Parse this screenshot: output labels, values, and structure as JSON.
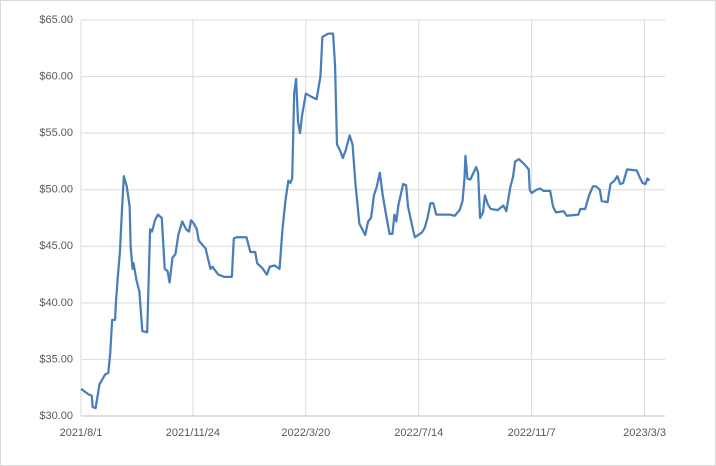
{
  "chart_data": {
    "type": "line",
    "color": "#4a7ebb",
    "grid": true,
    "xlim": [
      "2021/8/1",
      "2023/3/24"
    ],
    "xticks": [
      "2021/8/1",
      "2021/11/24",
      "2022/3/20",
      "2022/7/14",
      "2022/11/7",
      "2023/3/3"
    ],
    "ylim": [
      30,
      65
    ],
    "yticks": [
      {
        "value": 30,
        "label": "$30.00"
      },
      {
        "value": 35,
        "label": "$35.00"
      },
      {
        "value": 40,
        "label": "$40.00"
      },
      {
        "value": 45,
        "label": "$45.00"
      },
      {
        "value": 50,
        "label": "$50.00"
      },
      {
        "value": 55,
        "label": "$55.00"
      },
      {
        "value": 60,
        "label": "$60.00"
      },
      {
        "value": 65,
        "label": "$65.00"
      }
    ],
    "x": [
      "2021/8/1",
      "2021/8/9",
      "2021/8/12",
      "2021/8/13",
      "2021/8/16",
      "2021/8/20",
      "2021/8/26",
      "2021/8/29",
      "2021/8/31",
      "2021/9/2",
      "2021/9/5",
      "2021/9/6",
      "2021/9/8",
      "2021/9/10",
      "2021/9/12",
      "2021/9/14",
      "2021/9/17",
      "2021/9/20",
      "2021/9/21",
      "2021/9/23",
      "2021/9/24",
      "2021/9/27",
      "2021/9/30",
      "2021/10/3",
      "2021/10/8",
      "2021/10/11",
      "2021/10/13",
      "2021/10/16",
      "2021/10/19",
      "2021/10/23",
      "2021/10/26",
      "2021/10/29",
      "2021/10/31",
      "2021/11/3",
      "2021/11/6",
      "2021/11/9",
      "2021/11/13",
      "2021/11/17",
      "2021/11/20",
      "2021/11/22",
      "2021/11/25",
      "2021/11/28",
      "2021/11/30",
      "2021/12/7",
      "2021/12/12",
      "2021/12/14",
      "2021/12/20",
      "2021/12/26",
      "2022/1/3",
      "2022/1/5",
      "2022/1/8",
      "2022/1/18",
      "2022/1/22",
      "2022/1/27",
      "2022/1/29",
      "2022/2/3",
      "2022/2/8",
      "2022/2/11",
      "2022/2/16",
      "2022/2/21",
      "2022/2/24",
      "2022/2/27",
      "2022/3/2",
      "2022/3/4",
      "2022/3/6",
      "2022/3/8",
      "2022/3/10",
      "2022/3/12",
      "2022/3/14",
      "2022/3/16",
      "2022/3/20",
      "2022/3/26",
      "2022/3/31",
      "2022/4/4",
      "2022/4/6",
      "2022/4/12",
      "2022/4/17",
      "2022/4/19",
      "2022/4/21",
      "2022/4/24",
      "2022/4/27",
      "2022/4/30",
      "2022/5/4",
      "2022/5/7",
      "2022/5/10",
      "2022/5/14",
      "2022/5/20",
      "2022/5/23",
      "2022/5/26",
      "2022/5/29",
      "2022/6/1",
      "2022/6/4",
      "2022/6/7",
      "2022/6/11",
      "2022/6/14",
      "2022/6/17",
      "2022/6/19",
      "2022/6/21",
      "2022/6/23",
      "2022/6/28",
      "2022/7/1",
      "2022/7/3",
      "2022/7/8",
      "2022/7/10",
      "2022/7/17",
      "2022/7/20",
      "2022/7/23",
      "2022/7/26",
      "2022/7/29",
      "2022/8/1",
      "2022/8/15",
      "2022/8/20",
      "2022/8/25",
      "2022/8/28",
      "2022/8/30",
      "2022/8/31",
      "2022/9/2",
      "2022/9/5",
      "2022/9/11",
      "2022/9/13",
      "2022/9/15",
      "2022/9/18",
      "2022/9/20",
      "2022/9/23",
      "2022/9/26",
      "2022/10/3",
      "2022/10/9",
      "2022/10/12",
      "2022/10/16",
      "2022/10/19",
      "2022/10/21",
      "2022/10/25",
      "2022/10/31",
      "2022/11/4",
      "2022/11/5",
      "2022/11/7",
      "2022/11/12",
      "2022/11/16",
      "2022/11/19",
      "2022/11/26",
      "2022/11/29",
      "2022/12/2",
      "2022/12/10",
      "2022/12/13",
      "2022/12/25",
      "2022/12/27",
      "2023/1/1",
      "2023/1/5",
      "2023/1/9",
      "2023/1/12",
      "2023/1/16",
      "2023/1/18",
      "2023/1/24",
      "2023/1/27",
      "2023/1/31",
      "2023/2/3",
      "2023/2/6",
      "2023/2/9",
      "2023/2/13",
      "2023/2/23",
      "2023/2/26",
      "2023/3/1",
      "2023/3/4",
      "2023/3/6",
      "2023/3/8"
    ],
    "values": [
      32.4,
      31.9,
      31.8,
      30.8,
      30.7,
      32.8,
      33.7,
      33.8,
      35.5,
      38.5,
      38.5,
      40.2,
      42.5,
      44.5,
      48,
      51.2,
      50.3,
      48.5,
      45,
      43,
      43.5,
      42,
      41,
      37.5,
      37.4,
      46.5,
      46.3,
      47.3,
      47.8,
      47.5,
      43,
      42.8,
      41.8,
      44,
      44.3,
      46,
      47.2,
      46.5,
      46.3,
      47.3,
      47,
      46.5,
      45.5,
      44.8,
      43,
      43.2,
      42.5,
      42.3,
      42.3,
      45.7,
      45.8,
      45.8,
      44.5,
      44.5,
      43.5,
      43.1,
      42.5,
      43.2,
      43.3,
      43,
      46.5,
      49,
      50.8,
      50.6,
      51,
      58.5,
      59.8,
      56,
      55,
      56.5,
      58.5,
      58.2,
      58,
      60,
      63.5,
      63.8,
      63.8,
      61,
      54,
      53.5,
      52.8,
      53.5,
      54.8,
      54,
      50.5,
      47,
      46,
      47.2,
      47.5,
      49.5,
      50.3,
      51.5,
      49.5,
      47.5,
      46.1,
      46.1,
      47.8,
      47.2,
      48.6,
      50.5,
      50.4,
      48.5,
      46.5,
      45.8,
      46.2,
      46.6,
      47.5,
      48.8,
      48.8,
      47.8,
      47.8,
      47.7,
      48.2,
      49,
      51,
      53,
      51,
      50.9,
      52,
      51.5,
      47.5,
      48,
      49.5,
      48.7,
      48.3,
      48.2,
      48.6,
      48.1,
      50.2,
      51.2,
      52.5,
      52.7,
      52.2,
      51.8,
      50,
      49.7,
      50,
      50.1,
      49.9,
      49.9,
      48.5,
      48,
      48.1,
      47.7,
      47.8,
      48.3,
      48.3,
      49.5,
      50.3,
      50.3,
      50,
      49,
      48.9,
      50.5,
      50.8,
      51.2,
      50.5,
      50.6,
      51.8,
      51.7,
      51.1,
      50.6,
      50.5,
      51,
      50.8
    ]
  }
}
